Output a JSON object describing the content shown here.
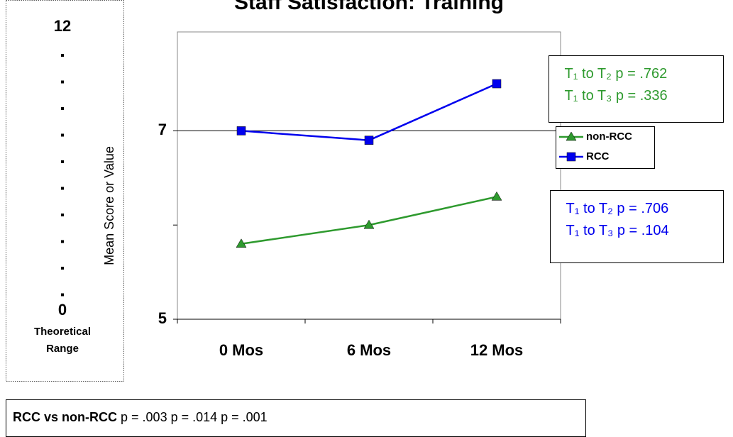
{
  "chart_data": {
    "type": "line",
    "title": "Staff Satisfaction: Training",
    "y_label": "Mean Score or Value",
    "categories": [
      "0 Mos",
      "6 Mos",
      "12 Mos"
    ],
    "series": [
      {
        "name": "non-RCC",
        "color": "#2e9a2e",
        "marker": "triangle",
        "values": [
          5.8,
          6.0,
          6.3
        ]
      },
      {
        "name": "RCC",
        "color": "#0000ee",
        "marker": "square",
        "values": [
          7.0,
          6.9,
          7.5
        ]
      }
    ],
    "ylim": [
      5,
      8.05
    ],
    "yticks": [
      5,
      7
    ],
    "yminorticks": [
      6
    ],
    "grid": true,
    "legend": "right",
    "annotations": [
      {
        "color": "#2e9a2e",
        "lines": [
          "T₁ to T₂ p = .762",
          "T₁ to T₃ p = .336"
        ]
      },
      {
        "color": "#0000ee",
        "lines": [
          "T₁ to T₂ p = .706",
          "T₁ to T₃ p = .104"
        ]
      }
    ]
  },
  "side_panel": {
    "max": "12",
    "min": "0",
    "label": [
      "Theoretical",
      "Range"
    ]
  },
  "footer": {
    "bold": "RCC vs non-RCC",
    "text": "p = .003 p = .014 p = .001"
  }
}
